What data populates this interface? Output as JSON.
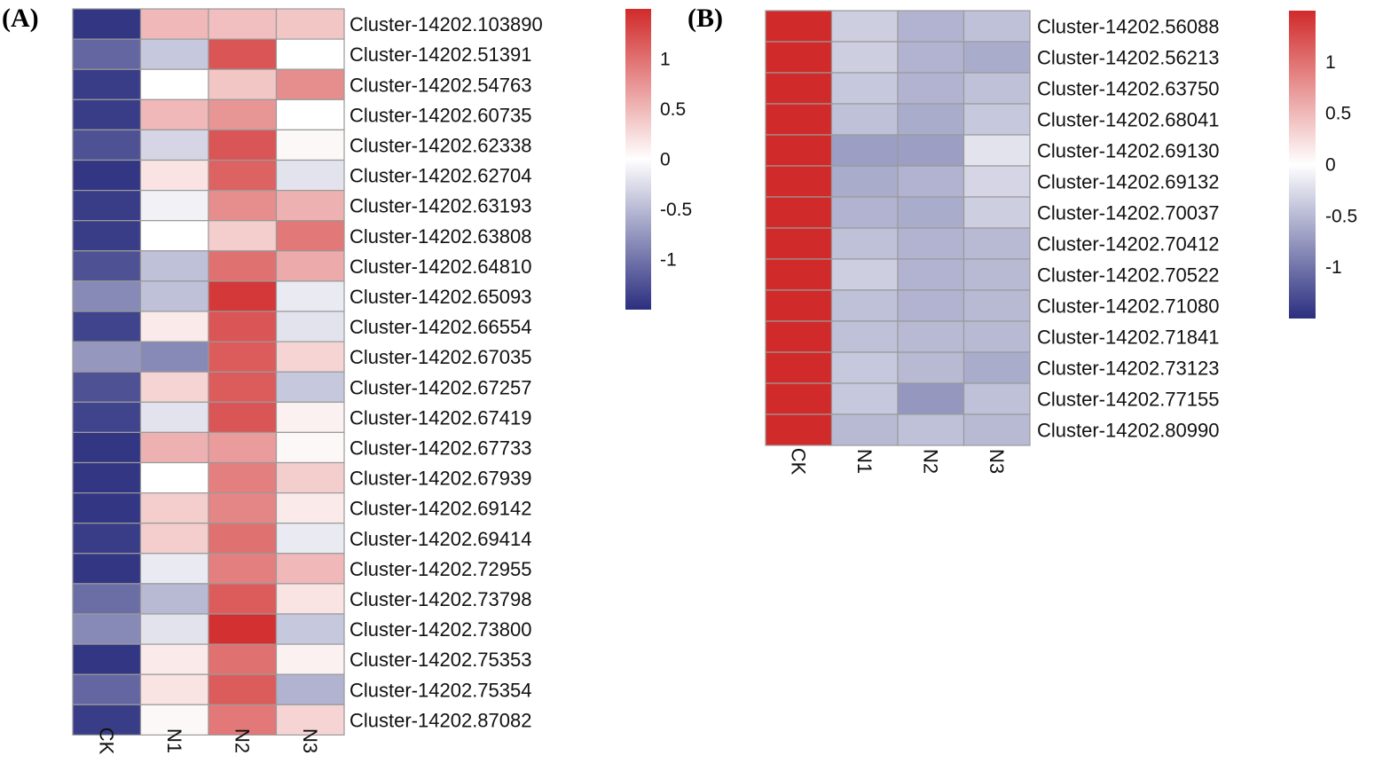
{
  "chart_data": [
    {
      "type": "heatmap",
      "panel_label": "(A)",
      "columns": [
        "CK",
        "N1",
        "N2",
        "N3"
      ],
      "rows": [
        "Cluster-14202.103890",
        "Cluster-14202.51391",
        "Cluster-14202.54763",
        "Cluster-14202.60735",
        "Cluster-14202.62338",
        "Cluster-14202.62704",
        "Cluster-14202.63193",
        "Cluster-14202.63808",
        "Cluster-14202.64810",
        "Cluster-14202.65093",
        "Cluster-14202.66554",
        "Cluster-14202.67035",
        "Cluster-14202.67257",
        "Cluster-14202.67419",
        "Cluster-14202.67733",
        "Cluster-14202.67939",
        "Cluster-14202.69142",
        "Cluster-14202.69414",
        "Cluster-14202.72955",
        "Cluster-14202.73798",
        "Cluster-14202.73800",
        "Cluster-14202.75353",
        "Cluster-14202.75354",
        "Cluster-14202.87082"
      ],
      "values": [
        [
          -1.45,
          0.5,
          0.45,
          0.4
        ],
        [
          -1.1,
          -0.4,
          1.2,
          0.0
        ],
        [
          -1.4,
          0.0,
          0.4,
          0.8
        ],
        [
          -1.4,
          0.5,
          0.75,
          0.0
        ],
        [
          -1.25,
          -0.3,
          1.2,
          0.05
        ],
        [
          -1.45,
          0.2,
          1.1,
          -0.2
        ],
        [
          -1.4,
          -0.1,
          0.8,
          0.55
        ],
        [
          -1.4,
          0.0,
          0.35,
          0.95
        ],
        [
          -1.25,
          -0.45,
          1.0,
          0.6
        ],
        [
          -0.85,
          -0.45,
          1.4,
          -0.15
        ],
        [
          -1.35,
          0.15,
          1.2,
          -0.2
        ],
        [
          -0.75,
          -0.85,
          1.15,
          0.3
        ],
        [
          -1.25,
          0.3,
          1.15,
          -0.4
        ],
        [
          -1.35,
          -0.2,
          1.2,
          0.1
        ],
        [
          -1.45,
          0.55,
          0.7,
          0.05
        ],
        [
          -1.45,
          0.0,
          0.9,
          0.35
        ],
        [
          -1.45,
          0.35,
          0.85,
          0.15
        ],
        [
          -1.4,
          0.35,
          1.0,
          -0.15
        ],
        [
          -1.45,
          -0.15,
          0.9,
          0.5
        ],
        [
          -1.05,
          -0.5,
          1.15,
          0.2
        ],
        [
          -0.85,
          -0.2,
          1.45,
          -0.4
        ],
        [
          -1.45,
          0.15,
          1.0,
          0.1
        ],
        [
          -1.1,
          0.2,
          1.15,
          -0.55
        ],
        [
          -1.4,
          0.05,
          0.95,
          0.3
        ]
      ],
      "legend_ticks": [
        1,
        0.5,
        0,
        -0.5,
        -1
      ],
      "legend_tick_labels": [
        "1",
        "0.5",
        "0",
        "-0.5",
        "-1"
      ],
      "color_range": [
        -1.5,
        1.5
      ],
      "color_low": "#2b2f7f",
      "color_mid": "#ffffff",
      "color_high": "#d12a2a"
    },
    {
      "type": "heatmap",
      "panel_label": "(B)",
      "columns": [
        "CK",
        "N1",
        "N2",
        "N3"
      ],
      "rows": [
        "Cluster-14202.56088",
        "Cluster-14202.56213",
        "Cluster-14202.63750",
        "Cluster-14202.68041",
        "Cluster-14202.69130",
        "Cluster-14202.69132",
        "Cluster-14202.70037",
        "Cluster-14202.70412",
        "Cluster-14202.70522",
        "Cluster-14202.71080",
        "Cluster-14202.71841",
        "Cluster-14202.73123",
        "Cluster-14202.77155",
        "Cluster-14202.80990"
      ],
      "values": [
        [
          1.5,
          -0.35,
          -0.55,
          -0.45
        ],
        [
          1.5,
          -0.35,
          -0.55,
          -0.6
        ],
        [
          1.5,
          -0.4,
          -0.55,
          -0.45
        ],
        [
          1.5,
          -0.45,
          -0.6,
          -0.4
        ],
        [
          1.5,
          -0.7,
          -0.7,
          -0.2
        ],
        [
          1.5,
          -0.6,
          -0.55,
          -0.3
        ],
        [
          1.5,
          -0.55,
          -0.6,
          -0.35
        ],
        [
          1.5,
          -0.45,
          -0.55,
          -0.5
        ],
        [
          1.5,
          -0.35,
          -0.55,
          -0.5
        ],
        [
          1.5,
          -0.45,
          -0.55,
          -0.5
        ],
        [
          1.5,
          -0.45,
          -0.5,
          -0.5
        ],
        [
          1.5,
          -0.4,
          -0.5,
          -0.6
        ],
        [
          1.5,
          -0.4,
          -0.75,
          -0.45
        ],
        [
          1.5,
          -0.5,
          -0.45,
          -0.5
        ]
      ],
      "legend_ticks": [
        1,
        0.5,
        0,
        -0.5,
        -1
      ],
      "legend_tick_labels": [
        "1",
        "0.5",
        "0",
        "-0.5",
        "-1"
      ],
      "color_range": [
        -1.5,
        1.5
      ],
      "color_low": "#2b2f7f",
      "color_mid": "#ffffff",
      "color_high": "#d12a2a"
    }
  ]
}
